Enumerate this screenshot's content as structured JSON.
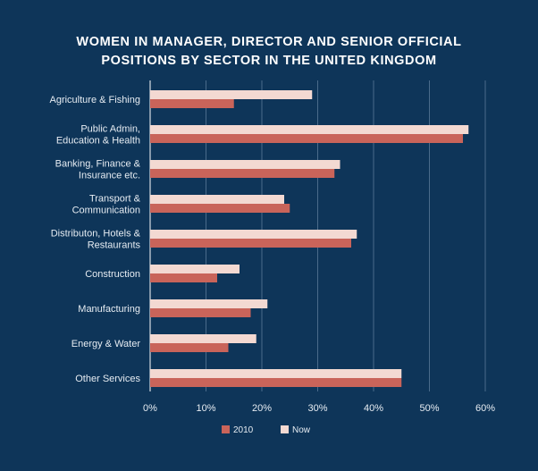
{
  "chart_data": {
    "type": "bar",
    "orientation": "horizontal",
    "title": [
      "WOMEN IN MANAGER, DIRECTOR AND SENIOR OFFICIAL",
      "POSITIONS BY SECTOR IN THE UNITED KINGDOM"
    ],
    "categories": [
      [
        "Agriculture & Fishing"
      ],
      [
        "Public Admin,",
        "Education & Health"
      ],
      [
        "Banking, Finance &",
        "Insurance etc."
      ],
      [
        "Transport &",
        "Communication"
      ],
      [
        "Distributon, Hotels &",
        "Restaurants"
      ],
      [
        "Construction"
      ],
      [
        "Manufacturing"
      ],
      [
        "Energy & Water"
      ],
      [
        "Other Services"
      ]
    ],
    "series": [
      {
        "name": "2010",
        "color": "#c9645a",
        "values": [
          15,
          56,
          33,
          25,
          36,
          12,
          18,
          14,
          45
        ]
      },
      {
        "name": "Now",
        "color": "#f3d9d2",
        "values": [
          29,
          57,
          34,
          24,
          37,
          16,
          21,
          19,
          45
        ]
      }
    ],
    "xlim": [
      0,
      60
    ],
    "xticks": [
      "0%",
      "10%",
      "20%",
      "30%",
      "40%",
      "50%",
      "60%"
    ],
    "grid": "vertical",
    "legend": "bottom-center"
  }
}
